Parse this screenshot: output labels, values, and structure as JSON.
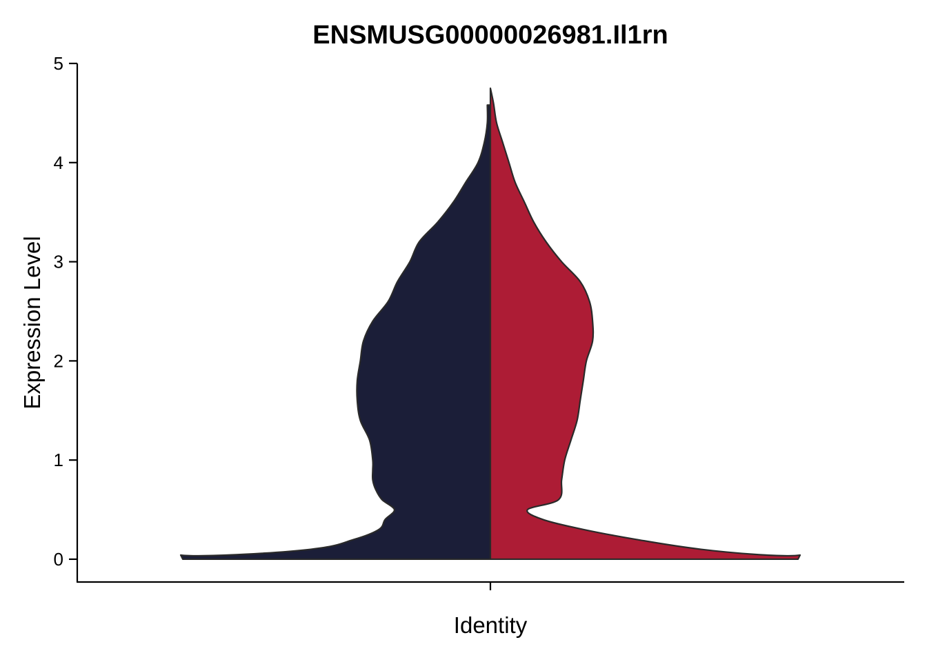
{
  "chart_data": {
    "type": "violin",
    "title": "ENSMUSG00000026981.Il1rn",
    "xlabel": "Identity",
    "ylabel": "Expression Level",
    "ylim": [
      -0.23,
      5
    ],
    "yticks": [
      0,
      1,
      2,
      3,
      4,
      5
    ],
    "grid": false,
    "legend": "none",
    "split": true,
    "series": [
      {
        "side": "left",
        "color": "#1b1e38",
        "max": 4.58,
        "density": [
          {
            "y": 0.0,
            "w": 1.0
          },
          {
            "y": 0.1,
            "w": 0.58
          },
          {
            "y": 0.2,
            "w": 0.44
          },
          {
            "y": 0.3,
            "w": 0.36
          },
          {
            "y": 0.4,
            "w": 0.34
          },
          {
            "y": 0.5,
            "w": 0.31
          },
          {
            "y": 0.6,
            "w": 0.35
          },
          {
            "y": 0.7,
            "w": 0.37
          },
          {
            "y": 0.8,
            "w": 0.38
          },
          {
            "y": 0.9,
            "w": 0.38
          },
          {
            "y": 1.0,
            "w": 0.38
          },
          {
            "y": 1.2,
            "w": 0.39
          },
          {
            "y": 1.4,
            "w": 0.42
          },
          {
            "y": 1.6,
            "w": 0.43
          },
          {
            "y": 1.8,
            "w": 0.43
          },
          {
            "y": 2.0,
            "w": 0.42
          },
          {
            "y": 2.2,
            "w": 0.41
          },
          {
            "y": 2.4,
            "w": 0.38
          },
          {
            "y": 2.6,
            "w": 0.33
          },
          {
            "y": 2.8,
            "w": 0.3
          },
          {
            "y": 3.0,
            "w": 0.26
          },
          {
            "y": 3.2,
            "w": 0.23
          },
          {
            "y": 3.4,
            "w": 0.17
          },
          {
            "y": 3.6,
            "w": 0.12
          },
          {
            "y": 3.8,
            "w": 0.08
          },
          {
            "y": 4.0,
            "w": 0.04
          },
          {
            "y": 4.2,
            "w": 0.02
          },
          {
            "y": 4.4,
            "w": 0.01
          },
          {
            "y": 4.58,
            "w": 0.01
          }
        ]
      },
      {
        "side": "right",
        "color": "#ad1c35",
        "max": 4.75,
        "density": [
          {
            "y": 0.0,
            "w": 1.0
          },
          {
            "y": 0.1,
            "w": 0.68
          },
          {
            "y": 0.2,
            "w": 0.47
          },
          {
            "y": 0.3,
            "w": 0.3
          },
          {
            "y": 0.4,
            "w": 0.17
          },
          {
            "y": 0.5,
            "w": 0.12
          },
          {
            "y": 0.6,
            "w": 0.22
          },
          {
            "y": 0.8,
            "w": 0.23
          },
          {
            "y": 1.0,
            "w": 0.24
          },
          {
            "y": 1.2,
            "w": 0.26
          },
          {
            "y": 1.4,
            "w": 0.28
          },
          {
            "y": 1.6,
            "w": 0.29
          },
          {
            "y": 1.8,
            "w": 0.3
          },
          {
            "y": 2.0,
            "w": 0.31
          },
          {
            "y": 2.2,
            "w": 0.33
          },
          {
            "y": 2.4,
            "w": 0.33
          },
          {
            "y": 2.6,
            "w": 0.32
          },
          {
            "y": 2.8,
            "w": 0.29
          },
          {
            "y": 3.0,
            "w": 0.23
          },
          {
            "y": 3.2,
            "w": 0.18
          },
          {
            "y": 3.4,
            "w": 0.14
          },
          {
            "y": 3.6,
            "w": 0.11
          },
          {
            "y": 3.8,
            "w": 0.08
          },
          {
            "y": 4.0,
            "w": 0.06
          },
          {
            "y": 4.2,
            "w": 0.04
          },
          {
            "y": 4.4,
            "w": 0.02
          },
          {
            "y": 4.6,
            "w": 0.01
          },
          {
            "y": 4.75,
            "w": 0.0
          }
        ]
      }
    ]
  }
}
